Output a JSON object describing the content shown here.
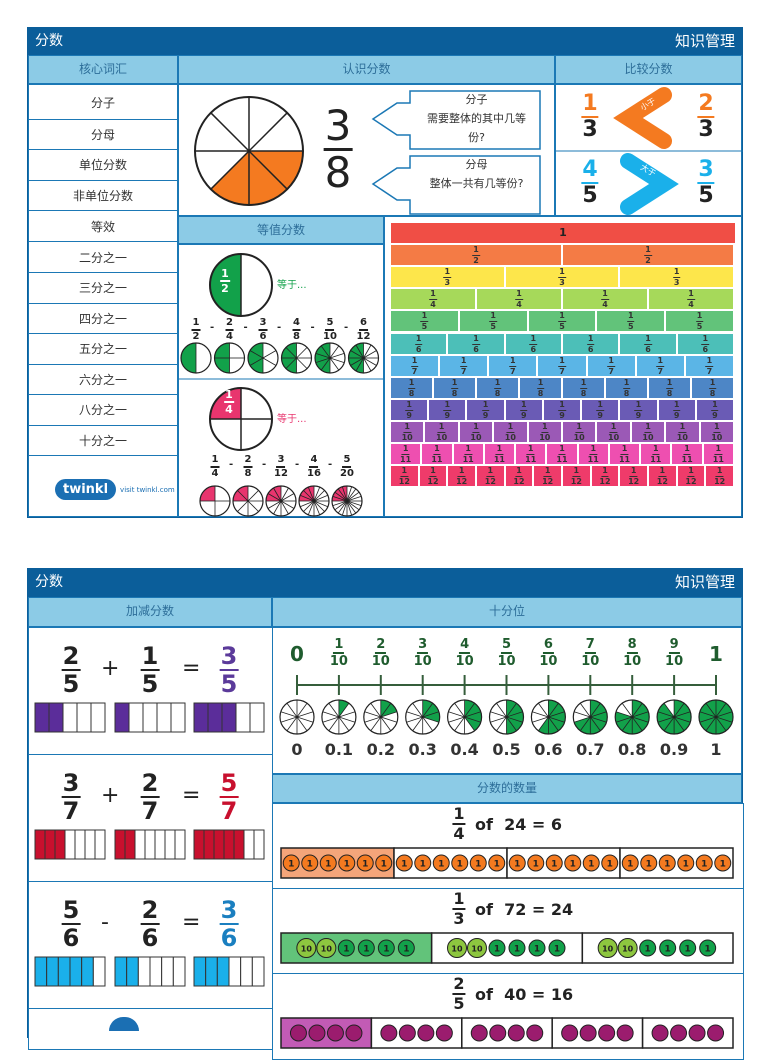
{
  "page1": {
    "header": {
      "title": "分数",
      "right": "知识管理"
    },
    "vocab": {
      "title": "核心词汇",
      "items": [
        "分子",
        "分母",
        "单位分数",
        "非单位分数",
        "等效",
        "二分之一",
        "三分之一",
        "四分之一",
        "五分之一",
        "六分之一",
        "八分之一",
        "十分之一"
      ]
    },
    "recognize": {
      "title": "认识分数",
      "numerator": "3",
      "denominator": "8",
      "parts": 8,
      "shaded": 3,
      "color": "#f47a20",
      "callouts": [
        {
          "term": "分子",
          "desc": "需要整体的其中几等份?"
        },
        {
          "term": "分母",
          "desc": "整体一共有几等份?"
        }
      ]
    },
    "compare": {
      "title": "比较分数",
      "rows": [
        {
          "left": {
            "n": "1",
            "d": "3"
          },
          "label": "小于",
          "right": {
            "n": "2",
            "d": "3"
          },
          "symbol": "less-than",
          "color": "#f47a20"
        },
        {
          "left": {
            "n": "4",
            "d": "5"
          },
          "label": "大于",
          "right": {
            "n": "3",
            "d": "5"
          },
          "symbol": "greater-than",
          "color": "#1ab0ea"
        }
      ]
    },
    "equivalent": {
      "title": "等值分数",
      "groups": [
        {
          "main": {
            "n": "1",
            "d": "2"
          },
          "equals": "等于...",
          "color": "#12a14a",
          "fractions": [
            {
              "n": "1",
              "d": "2"
            },
            {
              "n": "2",
              "d": "4"
            },
            {
              "n": "3",
              "d": "6"
            },
            {
              "n": "4",
              "d": "8"
            },
            {
              "n": "5",
              "d": "10"
            },
            {
              "n": "6",
              "d": "12"
            }
          ],
          "separator": "-"
        },
        {
          "main": {
            "n": "1",
            "d": "4"
          },
          "equals": "等于...",
          "color": "#e8356e",
          "fractions": [
            {
              "n": "1",
              "d": "4"
            },
            {
              "n": "2",
              "d": "8"
            },
            {
              "n": "3",
              "d": "12"
            },
            {
              "n": "4",
              "d": "16"
            },
            {
              "n": "5",
              "d": "20"
            }
          ],
          "separator": "-"
        }
      ]
    },
    "wall": {
      "whole": "1",
      "rows": [
        {
          "d": "2",
          "color": "#f47b45"
        },
        {
          "d": "3",
          "color": "#fde64b"
        },
        {
          "d": "4",
          "color": "#a6d95a"
        },
        {
          "d": "5",
          "color": "#62c37a"
        },
        {
          "d": "6",
          "color": "#4cbfb8"
        },
        {
          "d": "7",
          "color": "#5bb5e6"
        },
        {
          "d": "8",
          "color": "#4d86c6"
        },
        {
          "d": "9",
          "color": "#6a5bb5"
        },
        {
          "d": "10",
          "color": "#9b59b6"
        },
        {
          "d": "11",
          "color": "#ee4fb0"
        },
        {
          "d": "12",
          "color": "#ef3b6a"
        }
      ],
      "whole_color": "#f04e45"
    },
    "logo": {
      "brand": "twinkl",
      "visit": "visit twinkl.com"
    }
  },
  "page2": {
    "header": {
      "title": "分数",
      "right": "知识管理"
    },
    "addsub": {
      "title": "加减分数",
      "rows": [
        {
          "a": {
            "n": "2",
            "d": "5"
          },
          "op": "+",
          "b": {
            "n": "1",
            "d": "5"
          },
          "eq": "=",
          "r": {
            "n": "3",
            "d": "5"
          },
          "parts": 5,
          "fill": [
            2,
            1,
            3
          ],
          "color": "#5b2d9a",
          "result_color": "#5b3a9a"
        },
        {
          "a": {
            "n": "3",
            "d": "7"
          },
          "op": "+",
          "b": {
            "n": "2",
            "d": "7"
          },
          "eq": "=",
          "r": {
            "n": "5",
            "d": "7"
          },
          "parts": 7,
          "fill": [
            3,
            2,
            5
          ],
          "color": "#c8102e",
          "result_color": "#c8102e"
        },
        {
          "a": {
            "n": "5",
            "d": "6"
          },
          "op": "-",
          "b": {
            "n": "2",
            "d": "6"
          },
          "eq": "=",
          "r": {
            "n": "3",
            "d": "6"
          },
          "parts": 6,
          "fill": [
            5,
            2,
            3
          ],
          "color": "#1ab0ea",
          "result_color": "#1a7fc0"
        }
      ]
    },
    "tenths": {
      "title": "十分位",
      "start": "0",
      "end": "1",
      "fractions": [
        {
          "n": "1",
          "d": "10"
        },
        {
          "n": "2",
          "d": "10"
        },
        {
          "n": "3",
          "d": "10"
        },
        {
          "n": "4",
          "d": "10"
        },
        {
          "n": "5",
          "d": "10"
        },
        {
          "n": "6",
          "d": "10"
        },
        {
          "n": "7",
          "d": "10"
        },
        {
          "n": "8",
          "d": "10"
        },
        {
          "n": "9",
          "d": "10"
        }
      ],
      "decimals": [
        "0",
        "0.1",
        "0.2",
        "0.3",
        "0.4",
        "0.5",
        "0.6",
        "0.7",
        "0.8",
        "0.9",
        "1"
      ],
      "color": "#12a14a"
    },
    "quantity": {
      "title": "分数的数量",
      "rows": [
        {
          "frac": {
            "n": "1",
            "d": "4"
          },
          "text": "of  24 = 6",
          "groups": 4,
          "counters": [
            "1",
            "1",
            "1",
            "1",
            "1",
            "1"
          ],
          "counter_color": "#f47a20",
          "shade": "#f4a57a"
        },
        {
          "frac": {
            "n": "1",
            "d": "3"
          },
          "text": "of  72 = 24",
          "groups": 3,
          "counters": [
            "10",
            "10",
            "1",
            "1",
            "1",
            "1"
          ],
          "counter_color": "#12a14a",
          "ten_color": "#8dc63f",
          "shade": "#62c37a"
        },
        {
          "frac": {
            "n": "2",
            "d": "5"
          },
          "text": "of  40 = 16",
          "groups": 5,
          "counters": [
            "",
            "",
            "",
            ""
          ],
          "counter_color": "#9b1c6e",
          "shade": "#c25bb5"
        }
      ]
    }
  }
}
